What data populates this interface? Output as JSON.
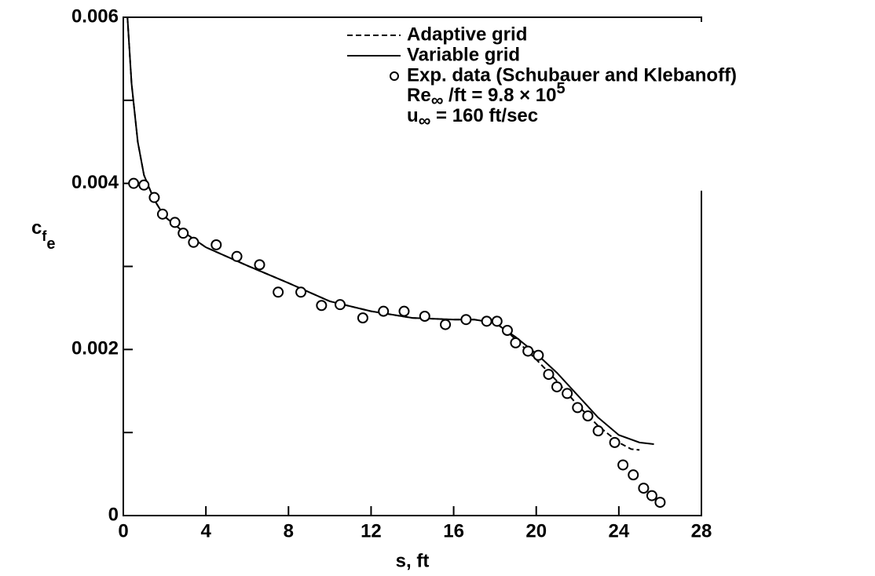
{
  "chart_data": {
    "type": "line",
    "xlabel": "s, ft",
    "ylabel_parts": [
      "c",
      "f",
      "e"
    ],
    "xlim": [
      0,
      28
    ],
    "ylim": [
      0,
      0.006
    ],
    "xticks": [
      0,
      4,
      8,
      12,
      16,
      20,
      24,
      28
    ],
    "yticks": [
      0,
      0.002,
      0.004,
      0.006
    ],
    "yticks_minor": [
      0.001,
      0.003,
      0.005
    ],
    "color": "#000000",
    "series": [
      {
        "name": "Adaptive grid",
        "style": "dashed",
        "x": [
          0.2,
          0.4,
          0.7,
          1,
          1.5,
          2,
          3,
          4,
          6,
          8,
          10,
          12,
          14,
          16,
          17,
          18,
          18.5,
          19,
          20,
          21,
          22,
          23,
          24,
          24.6,
          25.0
        ],
        "values": [
          0.006,
          0.0052,
          0.0045,
          0.0041,
          0.0038,
          0.0036,
          0.0034,
          0.00323,
          0.00301,
          0.0028,
          0.00258,
          0.00246,
          0.00238,
          0.00236,
          0.00236,
          0.00232,
          0.00224,
          0.00212,
          0.00188,
          0.00162,
          0.00133,
          0.00108,
          0.00088,
          0.0008,
          0.00079
        ]
      },
      {
        "name": "Variable grid",
        "style": "solid",
        "x": [
          0.2,
          0.4,
          0.7,
          1,
          1.5,
          2,
          3,
          4,
          6,
          8,
          10,
          12,
          14,
          16,
          17,
          18,
          19,
          20,
          21,
          22,
          23,
          24,
          25,
          25.7
        ],
        "values": [
          0.006,
          0.0052,
          0.0045,
          0.0041,
          0.0038,
          0.0036,
          0.0034,
          0.00323,
          0.00301,
          0.0028,
          0.00258,
          0.00246,
          0.00238,
          0.00236,
          0.00236,
          0.00232,
          0.00215,
          0.00195,
          0.00172,
          0.00145,
          0.00118,
          0.00097,
          0.00088,
          0.00086
        ]
      },
      {
        "name": "Exp. data (Schubauer and Klebanoff)",
        "style": "markers",
        "x": [
          0.5,
          1.0,
          1.5,
          1.9,
          2.5,
          2.9,
          3.4,
          4.5,
          5.5,
          6.6,
          7.5,
          8.6,
          9.6,
          10.5,
          11.6,
          12.6,
          13.6,
          14.6,
          15.6,
          16.6,
          17.6,
          18.1,
          18.6,
          19.0,
          19.6,
          20.1,
          20.6,
          21.0,
          21.5,
          22.0,
          22.5,
          23.0,
          23.8,
          24.2,
          24.7,
          25.2,
          25.6,
          26.0
        ],
        "values": [
          0.004,
          0.00398,
          0.00383,
          0.00363,
          0.00353,
          0.0034,
          0.00329,
          0.00326,
          0.00312,
          0.00302,
          0.00269,
          0.00269,
          0.00253,
          0.00254,
          0.00238,
          0.00246,
          0.00246,
          0.0024,
          0.0023,
          0.00236,
          0.00234,
          0.00234,
          0.00223,
          0.00208,
          0.00198,
          0.00193,
          0.0017,
          0.00155,
          0.00147,
          0.0013,
          0.0012,
          0.00102,
          0.00088,
          0.00061,
          0.00049,
          0.00033,
          0.00024,
          0.00016
        ]
      }
    ],
    "annotations": [
      {
        "parts": [
          "Re",
          "∞",
          " /ft = 9.8 × 10",
          "5"
        ]
      },
      {
        "parts": [
          "u",
          "∞",
          " = 160 ft/sec"
        ]
      }
    ]
  }
}
